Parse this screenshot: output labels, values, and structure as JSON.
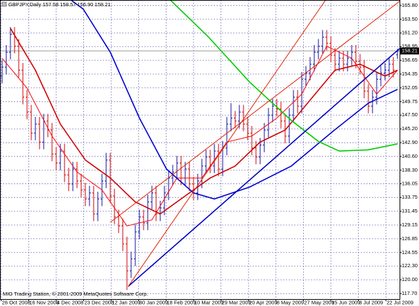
{
  "chart_data": {
    "type": "ohlc",
    "title": "GBPJPY,Daily  157.58 158.57 156.90 158.21",
    "footer": "MIG Trading Station, © 2001-2009 MetaQuotes Software Corp.",
    "up_color": "#1010a0",
    "down_color": "#d00000",
    "grid": true,
    "grid_color": "#8080c0",
    "open": [
      154.0,
      155.5,
      158.0,
      161.0,
      159.0,
      155.0,
      150.5,
      148.0,
      144.5,
      146.0,
      143.0,
      146.5,
      145.0,
      141.0,
      139.5,
      141.5,
      137.5,
      136.0,
      138.5,
      136.5,
      135.0,
      133.5,
      134.5,
      131.0,
      133.5,
      136.5,
      140.0,
      134.0,
      130.5,
      129.0,
      126.0,
      121.5,
      123.5,
      128.0,
      130.5,
      129.5,
      133.0,
      134.5,
      131.0,
      132.0,
      134.5,
      137.0,
      138.0,
      139.5,
      137.0,
      138.5,
      136.0,
      134.5,
      136.5,
      139.0,
      140.5,
      139.0,
      141.5,
      138.5,
      142.0,
      146.0,
      147.0,
      146.5,
      148.0,
      146.0,
      144.5,
      142.0,
      140.5,
      142.5,
      145.0,
      147.5,
      149.0,
      148.5,
      146.5,
      144.0,
      147.5,
      150.5,
      149.0,
      153.5,
      154.5,
      156.0,
      158.0,
      159.0,
      160.5,
      159.5,
      157.5,
      156.0,
      157.0,
      156.0,
      157.0,
      158.0,
      156.5,
      155.5,
      151.5,
      149.0,
      150.5,
      153.5,
      154.5,
      155.0,
      156.0,
      157.58
    ],
    "high": [
      156.7,
      159.2,
      162.2,
      162.2,
      160.2,
      156.2,
      151.7,
      149.2,
      147.2,
      147.2,
      147.7,
      147.7,
      146.2,
      142.2,
      142.7,
      142.7,
      138.7,
      139.7,
      139.7,
      137.7,
      136.2,
      135.7,
      135.7,
      134.7,
      137.7,
      141.2,
      141.2,
      135.2,
      131.7,
      130.2,
      127.2,
      124.7,
      129.2,
      131.7,
      131.7,
      134.2,
      135.7,
      135.7,
      133.2,
      135.7,
      138.2,
      139.2,
      140.7,
      140.7,
      139.7,
      139.7,
      137.2,
      137.7,
      140.2,
      141.7,
      141.7,
      142.7,
      142.7,
      143.2,
      147.2,
      149.5,
      148.2,
      149.2,
      149.2,
      147.2,
      145.7,
      143.2,
      143.7,
      146.2,
      148.7,
      150.2,
      150.2,
      149.7,
      147.7,
      148.7,
      151.7,
      151.7,
      154.7,
      155.7,
      157.2,
      159.2,
      160.2,
      161.7,
      161.7,
      160.7,
      158.7,
      158.2,
      158.2,
      158.2,
      159.2,
      159.2,
      157.7,
      156.7,
      152.7,
      151.7,
      154.7,
      155.7,
      156.2,
      157.2,
      157.2,
      158.57
    ],
    "low": [
      152.8,
      154.3,
      156.8,
      157.8,
      153.8,
      149.3,
      146.8,
      143.3,
      143.3,
      141.8,
      141.8,
      143.8,
      139.8,
      138.3,
      138.3,
      136.3,
      134.8,
      134.8,
      135.3,
      133.8,
      132.3,
      132.3,
      129.8,
      129.8,
      132.3,
      135.3,
      132.8,
      129.3,
      127.8,
      124.8,
      118.3,
      120.3,
      122.3,
      126.8,
      128.3,
      128.3,
      131.8,
      129.8,
      129.8,
      130.8,
      133.3,
      135.8,
      136.8,
      135.8,
      135.8,
      134.8,
      133.3,
      133.3,
      135.3,
      137.8,
      137.8,
      137.8,
      137.3,
      137.3,
      140.8,
      144.8,
      145.3,
      145.3,
      144.8,
      143.3,
      140.8,
      139.3,
      139.3,
      141.3,
      143.8,
      146.3,
      147.3,
      145.3,
      142.8,
      142.8,
      146.3,
      147.8,
      147.8,
      152.3,
      153.3,
      154.8,
      156.8,
      157.8,
      158.3,
      156.3,
      154.8,
      154.8,
      154.8,
      154.8,
      155.8,
      155.3,
      154.3,
      150.3,
      147.8,
      147.8,
      149.3,
      152.3,
      153.3,
      153.8,
      153.8,
      156.9
    ],
    "close": [
      155.5,
      158.0,
      161.0,
      159.0,
      155.0,
      150.5,
      148.0,
      144.5,
      146.0,
      143.0,
      146.5,
      145.0,
      141.0,
      139.5,
      141.5,
      137.5,
      136.0,
      138.5,
      136.5,
      135.0,
      133.5,
      134.5,
      131.0,
      133.5,
      136.5,
      140.0,
      134.0,
      130.5,
      129.0,
      126.0,
      121.5,
      123.5,
      128.0,
      130.5,
      129.5,
      133.0,
      134.5,
      131.0,
      132.0,
      134.5,
      137.0,
      138.0,
      139.5,
      137.0,
      138.5,
      136.0,
      134.5,
      136.5,
      139.0,
      140.5,
      139.0,
      141.5,
      138.5,
      142.0,
      146.0,
      147.0,
      146.5,
      148.0,
      146.0,
      144.5,
      142.0,
      140.5,
      142.5,
      145.0,
      147.5,
      149.0,
      148.5,
      146.5,
      144.0,
      147.5,
      150.5,
      149.0,
      153.5,
      154.5,
      156.0,
      158.0,
      159.0,
      160.5,
      159.5,
      157.5,
      156.0,
      157.0,
      156.0,
      157.0,
      158.0,
      156.5,
      155.5,
      151.5,
      149.0,
      150.5,
      153.5,
      154.5,
      155.0,
      156.0,
      155.0,
      158.21
    ],
    "overlays": [
      {
        "color": "#ff0000",
        "width": 1,
        "x": [
          0,
          6,
          12,
          18,
          24,
          30,
          36,
          42,
          48,
          54,
          60,
          66,
          72,
          78,
          84,
          90,
          95
        ],
        "values": [
          157,
          152,
          144,
          138,
          135,
          129,
          130,
          137,
          137,
          143,
          144,
          147,
          151,
          159,
          157,
          151,
          155
        ]
      },
      {
        "color": "#d00000",
        "width": 1.6,
        "x": [
          2,
          8,
          14,
          20,
          26,
          32,
          38,
          44,
          50,
          56,
          62,
          68,
          74,
          80,
          86,
          92,
          95
        ],
        "values": [
          162,
          155,
          146,
          140,
          137,
          133,
          131,
          134,
          137,
          139,
          143,
          145,
          150,
          155,
          156,
          154,
          155
        ]
      },
      {
        "color": "#0000d0",
        "width": 1.6,
        "x": [
          16,
          19.5,
          26,
          33,
          39.5,
          46,
          51,
          59.5,
          69.5,
          79.5,
          88,
          95
        ],
        "values": [
          167,
          165.2,
          158,
          147,
          138.5,
          134.5,
          133.5,
          135.5,
          139,
          144.8,
          149.5,
          151.8
        ]
      },
      {
        "color": "#00cc00",
        "width": 1.6,
        "x": [
          40,
          49.5,
          59.5,
          69.5,
          76,
          81,
          88,
          95
        ],
        "values": [
          167,
          160.6,
          153,
          146.6,
          143.1,
          141.5,
          141.7,
          142.7
        ]
      },
      {
        "color": "#0000c0",
        "width": 1.6,
        "x": [
          30.3,
          95.5
        ],
        "values": [
          118.9,
          158.6
        ]
      },
      {
        "color": "#e02000",
        "width": 1,
        "x": [
          30.3,
          78
        ],
        "values": [
          118.9,
          167
        ]
      },
      {
        "color": "#e02000",
        "width": 1,
        "x": [
          26,
          95.5
        ],
        "values": [
          129.6,
          166.5
        ]
      }
    ],
    "xlim": [
      -0.5,
      95.5
    ],
    "xticks": [
      {
        "value": -0.2,
        "label": "26 Oct 2008"
      },
      {
        "value": 6.4,
        "label": "16 Nov 2008"
      },
      {
        "value": 13.0,
        "label": "4 Dec 2008"
      },
      {
        "value": 19.6,
        "label": "23 Dec 2008"
      },
      {
        "value": 26.2,
        "label": "12 Jan 2009"
      },
      {
        "value": 32.8,
        "label": "30 Jan 2009"
      },
      {
        "value": 39.4,
        "label": "18 Feb 2009"
      },
      {
        "value": 46.0,
        "label": "10 Mar 2009"
      },
      {
        "value": 52.6,
        "label": "29 Mar 2009"
      },
      {
        "value": 59.2,
        "label": "20 Apr 2009"
      },
      {
        "value": 65.8,
        "label": "8 May 2009"
      },
      {
        "value": 72.4,
        "label": "27 May 2009"
      },
      {
        "value": 79.0,
        "label": "15 Jun 2009"
      },
      {
        "value": 85.6,
        "label": "3 Jul 2009"
      },
      {
        "value": 92.2,
        "label": "22 Jul 2009"
      }
    ],
    "ylim": [
      116.78,
      166.72
    ],
    "yticks": [
      {
        "value": 165.8,
        "label": "165.80"
      },
      {
        "value": 163.5,
        "label": "163.50"
      },
      {
        "value": 161.2,
        "label": "161.20"
      },
      158.95,
      156.65,
      154.35,
      152.05,
      149.75,
      {
        "value": 147.5,
        "label": "147.50"
      },
      {
        "value": 145.2,
        "label": "145.20"
      },
      {
        "value": 142.9,
        "label": "142.90"
      },
      {
        "value": 140.6,
        "label": "140.60"
      },
      {
        "value": 138.3,
        "label": "138.30"
      },
      136.05,
      133.75,
      131.45,
      129.15,
      126.85,
      124.55,
      {
        "value": 122.3,
        "label": "122.30"
      },
      {
        "value": 120.0,
        "label": "120.00"
      },
      {
        "value": 117.7,
        "label": "117.70"
      }
    ]
  }
}
